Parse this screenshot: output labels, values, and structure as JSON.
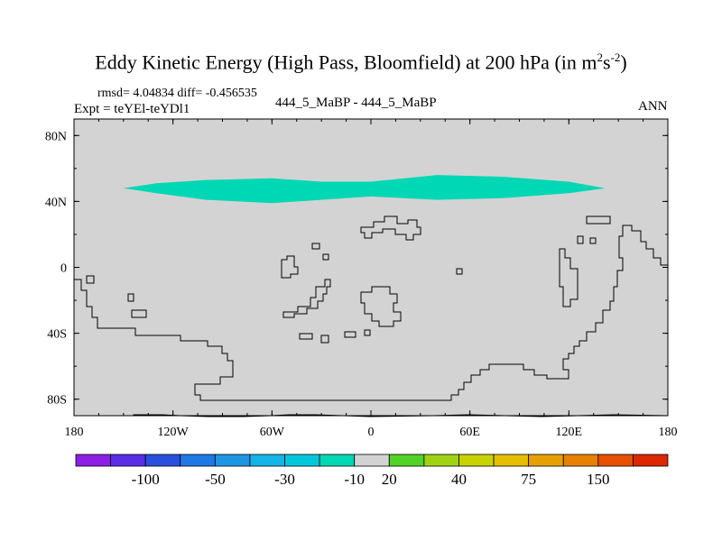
{
  "title": {
    "main": "Eddy Kinetic Energy (High Pass, Bloomfield) at 200 hPa (in m",
    "sup1": "2",
    "mid": "s",
    "sup2": "-2",
    "close": ")"
  },
  "subtitle": {
    "rmsd": "rmsd= 4.04834 diff= -0.456535",
    "expt": "Expt = teYEl-teYDl1",
    "cases": "444_5_MaBP - 444_5_MaBP",
    "season": "ANN"
  },
  "chart_data": {
    "type": "heatmap",
    "title": "Eddy Kinetic Energy (High Pass, Bloomfield) at 200 hPa (in m^2 s^-2)",
    "xlim": [
      -180,
      180
    ],
    "ylim": [
      -90,
      90
    ],
    "x_ticks": [
      {
        "value": -180,
        "label": "180"
      },
      {
        "value": -120,
        "label": "120W"
      },
      {
        "value": -60,
        "label": "60W"
      },
      {
        "value": 0,
        "label": "0"
      },
      {
        "value": 60,
        "label": "60E"
      },
      {
        "value": 120,
        "label": "120E"
      },
      {
        "value": 180,
        "label": "180"
      }
    ],
    "y_ticks": [
      {
        "value": 80,
        "label": "80N"
      },
      {
        "value": 40,
        "label": "40N"
      },
      {
        "value": 0,
        "label": "0"
      },
      {
        "value": -40,
        "label": "40S"
      },
      {
        "value": -80,
        "label": "80S"
      }
    ],
    "background_value": "-10 to 20 (no significant difference)",
    "background_color": "#d3d3d3",
    "anomaly_region": {
      "description": "negative band (-30 to -10) over northern mid-latitudes",
      "color": "#00d7b4",
      "band": [
        [
          -150,
          48
        ],
        [
          -130,
          51
        ],
        [
          -100,
          53
        ],
        [
          -60,
          54
        ],
        [
          -30,
          52
        ],
        [
          0,
          52
        ],
        [
          40,
          56
        ],
        [
          80,
          55
        ],
        [
          120,
          52
        ],
        [
          142,
          48
        ],
        [
          120,
          45
        ],
        [
          80,
          42
        ],
        [
          40,
          41
        ],
        [
          0,
          43
        ],
        [
          -30,
          41
        ],
        [
          -60,
          39
        ],
        [
          -100,
          41
        ],
        [
          -130,
          45
        ],
        [
          -150,
          48
        ]
      ]
    },
    "colorbar": {
      "colors": [
        "#8c1ee6",
        "#5a2de6",
        "#2850dc",
        "#1e78e6",
        "#1e96e6",
        "#14b4e6",
        "#00c8dc",
        "#00d7b4",
        "#d3d3d3",
        "#50d228",
        "#a0d214",
        "#c8d200",
        "#e6be00",
        "#e6a000",
        "#e68200",
        "#e65000",
        "#dc2800"
      ],
      "labels": [
        {
          "after": 2,
          "text": "-100"
        },
        {
          "after": 4,
          "text": "-50"
        },
        {
          "after": 6,
          "text": "-30"
        },
        {
          "after": 8,
          "text": "-10"
        },
        {
          "after": 9,
          "text": "20"
        },
        {
          "after": 11,
          "text": "40"
        },
        {
          "after": 13,
          "text": "75"
        },
        {
          "after": 15,
          "text": "150"
        }
      ]
    }
  }
}
